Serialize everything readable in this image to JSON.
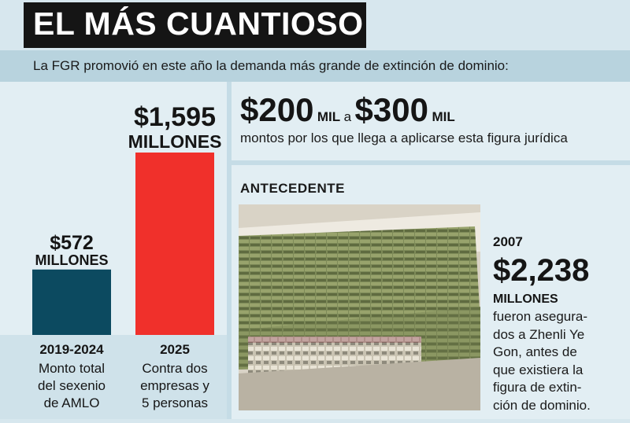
{
  "header": {
    "title": "EL MÁS CUANTIOSO",
    "intro": "La FGR promovió en este año la demanda más grande de extinción de dominio:"
  },
  "chart_data": {
    "type": "bar",
    "categories": [
      "2019-2024",
      "2025"
    ],
    "values": [
      572,
      1595
    ],
    "value_labels": [
      "$572",
      "$1,595"
    ],
    "value_units": [
      "MILLONES",
      "MILLONES"
    ],
    "descriptions": [
      [
        "Monto total",
        "del sexenio",
        "de AMLO"
      ],
      [
        "Contra dos",
        "empresas y",
        "5 personas"
      ]
    ],
    "colors": [
      "#0c4a60",
      "#f0302b"
    ],
    "ylim": [
      0,
      1595
    ]
  },
  "range": {
    "low": "$200",
    "low_unit": "MIL",
    "connector": "a",
    "high": "$300",
    "high_unit": "MIL",
    "description": "montos por los que llega a aplicarse esta figura jurídica"
  },
  "antecedente": {
    "heading": "ANTECEDENTE",
    "year": "2007",
    "amount": "$2,238",
    "unit": "MILLONES",
    "description_lines": [
      "fueron asegura-",
      "dos a Zhenli Ye",
      "Gon, antes de",
      "que existiera la",
      "figura de extin-",
      "ción de dominio."
    ]
  },
  "colors": {
    "background": "#d7e7ee",
    "intro_band": "#b8d3de",
    "title_bar": "#151515"
  }
}
